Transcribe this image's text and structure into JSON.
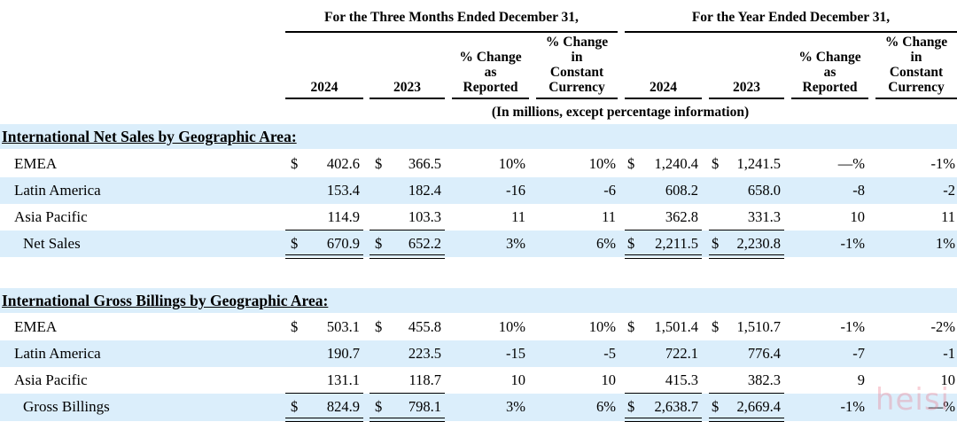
{
  "header": {
    "group_quarter": "For the Three Months Ended December 31,",
    "group_year": "For the Year Ended December 31,",
    "columns": [
      {
        "l1": "",
        "l2": "",
        "l3": "",
        "l4": "2024"
      },
      {
        "l1": "",
        "l2": "",
        "l3": "",
        "l4": "2023"
      },
      {
        "l1": "",
        "l2": "% Change",
        "l3": "as",
        "l4": "Reported"
      },
      {
        "l1": "% Change",
        "l2": "in",
        "l3": "Constant",
        "l4": "Currency"
      },
      {
        "l1": "",
        "l2": "",
        "l3": "",
        "l4": "2024"
      },
      {
        "l1": "",
        "l2": "",
        "l3": "",
        "l4": "2023"
      },
      {
        "l1": "",
        "l2": "% Change",
        "l3": "as",
        "l4": "Reported"
      },
      {
        "l1": "% Change",
        "l2": "in",
        "l3": "Constant",
        "l4": "Currency"
      }
    ],
    "units_note": "(In millions, except percentage information)"
  },
  "sections": [
    {
      "title": "International Net Sales by Geographic Area:",
      "rows": [
        {
          "label": "EMEA",
          "q24_sym": "$",
          "q24": "402.6",
          "q23_sym": "$",
          "q23": "366.5",
          "q_rep": "10%",
          "q_cc": "10%",
          "y24_sym": "$",
          "y24": "1,240.4",
          "y23_sym": "$",
          "y23": "1,241.5",
          "y_rep": "—%",
          "y_cc": "-1%"
        },
        {
          "label": "Latin America",
          "q24_sym": "",
          "q24": "153.4",
          "q23_sym": "",
          "q23": "182.4",
          "q_rep": "-16",
          "q_cc": "-6",
          "y24_sym": "",
          "y24": "608.2",
          "y23_sym": "",
          "y23": "658.0",
          "y_rep": "-8",
          "y_cc": "-2"
        },
        {
          "label": "Asia Pacific",
          "q24_sym": "",
          "q24": "114.9",
          "q23_sym": "",
          "q23": "103.3",
          "q_rep": "11",
          "q_cc": "11",
          "y24_sym": "",
          "y24": "362.8",
          "y23_sym": "",
          "y23": "331.3",
          "y_rep": "10",
          "y_cc": "11"
        },
        {
          "label": "Net Sales",
          "q24_sym": "$",
          "q24": "670.9",
          "q23_sym": "$",
          "q23": "652.2",
          "q_rep": "3%",
          "q_cc": "6%",
          "y24_sym": "$",
          "y24": "2,211.5",
          "y23_sym": "$",
          "y23": "2,230.8",
          "y_rep": "-1%",
          "y_cc": "1%"
        }
      ]
    },
    {
      "title": "International Gross Billings by Geographic Area:",
      "rows": [
        {
          "label": "EMEA",
          "q24_sym": "$",
          "q24": "503.1",
          "q23_sym": "$",
          "q23": "455.8",
          "q_rep": "10%",
          "q_cc": "10%",
          "y24_sym": "$",
          "y24": "1,501.4",
          "y23_sym": "$",
          "y23": "1,510.7",
          "y_rep": "-1%",
          "y_cc": "-2%"
        },
        {
          "label": "Latin America",
          "q24_sym": "",
          "q24": "190.7",
          "q23_sym": "",
          "q23": "223.5",
          "q_rep": "-15",
          "q_cc": "-5",
          "y24_sym": "",
          "y24": "722.1",
          "y23_sym": "",
          "y23": "776.4",
          "y_rep": "-7",
          "y_cc": "-1"
        },
        {
          "label": "Asia Pacific",
          "q24_sym": "",
          "q24": "131.1",
          "q23_sym": "",
          "q23": "118.7",
          "q_rep": "10",
          "q_cc": "10",
          "y24_sym": "",
          "y24": "415.3",
          "y23_sym": "",
          "y23": "382.3",
          "y_rep": "9",
          "y_cc": "10"
        },
        {
          "label": "Gross Billings",
          "q24_sym": "$",
          "q24": "824.9",
          "q23_sym": "$",
          "q23": "798.1",
          "q_rep": "3%",
          "q_cc": "6%",
          "y24_sym": "$",
          "y24": "2,638.7",
          "y23_sym": "$",
          "y23": "2,669.4",
          "y_rep": "-1%",
          "y_cc": "—%"
        }
      ]
    }
  ],
  "watermark": "heisi",
  "colors": {
    "band": "#dbeefb",
    "watermark": "#eb788c"
  }
}
